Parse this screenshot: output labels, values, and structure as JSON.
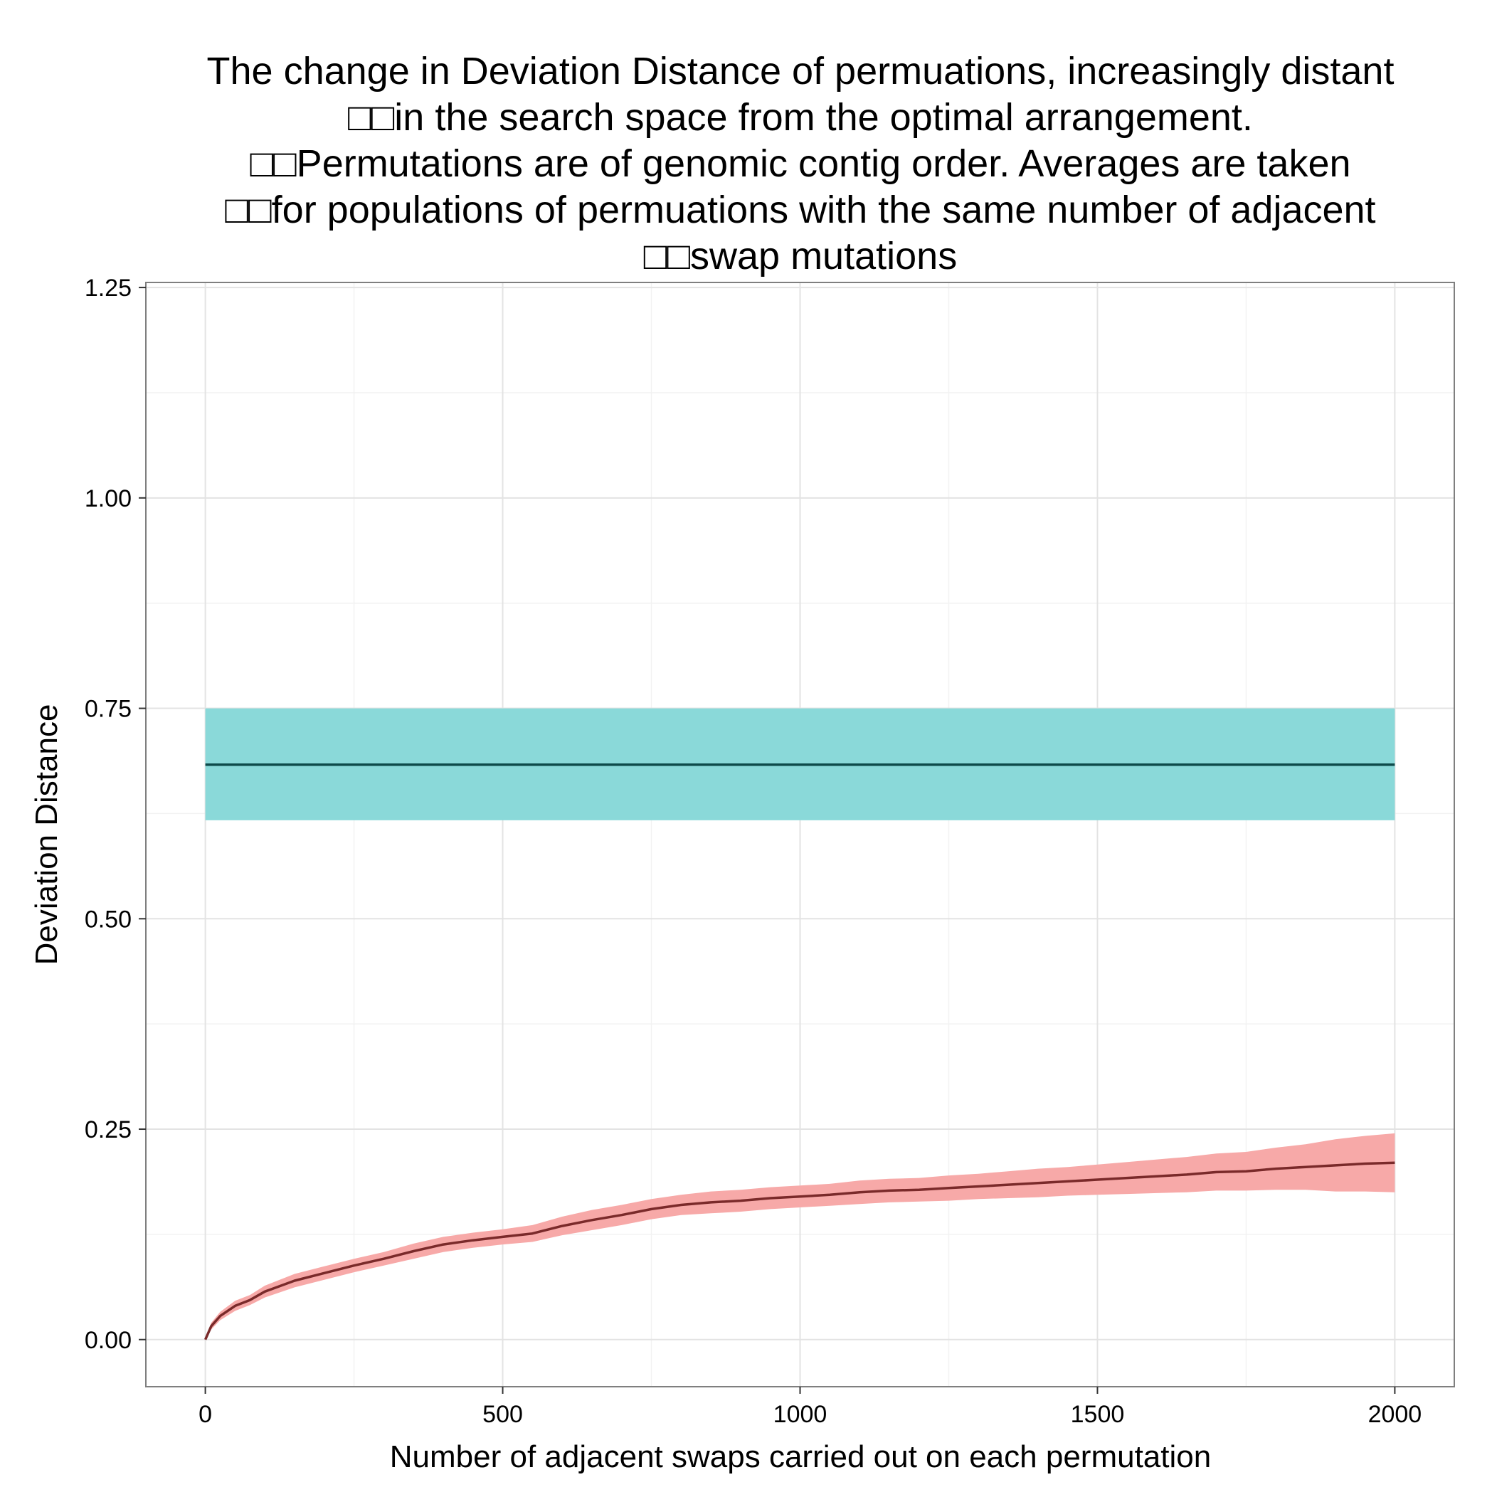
{
  "chart_data": {
    "type": "line",
    "title_lines": [
      "The change in Deviation Distance of permuations, increasingly distant",
      "□□in the search space from the optimal arrangement.",
      "□□Permutations are of genomic contig order. Averages are taken",
      "□□for populations of permuations with the same number of adjacent",
      "□□swap mutations"
    ],
    "xlabel": "Number of adjacent swaps carried out on each permutation",
    "ylabel": "Deviation Distance",
    "xlim": [
      -100,
      2100
    ],
    "ylim": [
      -0.056,
      1.256
    ],
    "x_ticks": [
      0,
      500,
      1000,
      1500,
      2000
    ],
    "x_tick_labels": [
      "0",
      "500",
      "1000",
      "1500",
      "2000"
    ],
    "y_ticks": [
      0,
      0.25,
      0.5,
      0.75,
      1.0,
      1.25
    ],
    "y_tick_labels": [
      "0.00",
      "0.25",
      "0.50",
      "0.75",
      "1.00",
      "1.25"
    ],
    "grid": true,
    "background": "white panel with light grey grid",
    "series": [
      {
        "line_color": "#0d4a4a",
        "band_color": "#8ad9d9",
        "x": [
          0,
          2000
        ],
        "y": [
          0.683,
          0.683
        ],
        "lower": [
          0.617,
          0.617
        ],
        "upper": [
          0.75,
          0.75
        ]
      },
      {
        "line_color": "#7a2a2a",
        "band_color": "#f7a9a8",
        "x": [
          0,
          10,
          25,
          50,
          75,
          100,
          150,
          200,
          250,
          300,
          350,
          400,
          450,
          500,
          550,
          600,
          650,
          700,
          750,
          800,
          850,
          900,
          950,
          1000,
          1050,
          1100,
          1150,
          1200,
          1250,
          1300,
          1350,
          1400,
          1450,
          1500,
          1550,
          1600,
          1650,
          1700,
          1750,
          1800,
          1850,
          1900,
          1950,
          2000
        ],
        "y": [
          0,
          0.016,
          0.028,
          0.04,
          0.047,
          0.057,
          0.07,
          0.079,
          0.088,
          0.096,
          0.105,
          0.113,
          0.118,
          0.122,
          0.126,
          0.135,
          0.142,
          0.148,
          0.155,
          0.16,
          0.163,
          0.165,
          0.168,
          0.17,
          0.172,
          0.175,
          0.177,
          0.178,
          0.18,
          0.182,
          0.184,
          0.186,
          0.188,
          0.19,
          0.192,
          0.194,
          0.196,
          0.199,
          0.2,
          0.203,
          0.205,
          0.207,
          0.209,
          0.21
        ],
        "lower": [
          0,
          0.012,
          0.023,
          0.034,
          0.041,
          0.05,
          0.062,
          0.071,
          0.08,
          0.088,
          0.096,
          0.104,
          0.109,
          0.113,
          0.116,
          0.124,
          0.13,
          0.136,
          0.143,
          0.148,
          0.15,
          0.152,
          0.155,
          0.157,
          0.159,
          0.161,
          0.163,
          0.164,
          0.165,
          0.167,
          0.168,
          0.169,
          0.171,
          0.172,
          0.173,
          0.174,
          0.175,
          0.177,
          0.177,
          0.178,
          0.178,
          0.176,
          0.176,
          0.175
        ],
        "upper": [
          0,
          0.02,
          0.033,
          0.046,
          0.053,
          0.064,
          0.078,
          0.087,
          0.096,
          0.104,
          0.114,
          0.122,
          0.127,
          0.131,
          0.136,
          0.146,
          0.154,
          0.16,
          0.167,
          0.172,
          0.176,
          0.178,
          0.181,
          0.183,
          0.185,
          0.189,
          0.191,
          0.192,
          0.195,
          0.197,
          0.2,
          0.203,
          0.205,
          0.208,
          0.211,
          0.214,
          0.217,
          0.221,
          0.223,
          0.228,
          0.232,
          0.238,
          0.242,
          0.245
        ]
      }
    ]
  }
}
